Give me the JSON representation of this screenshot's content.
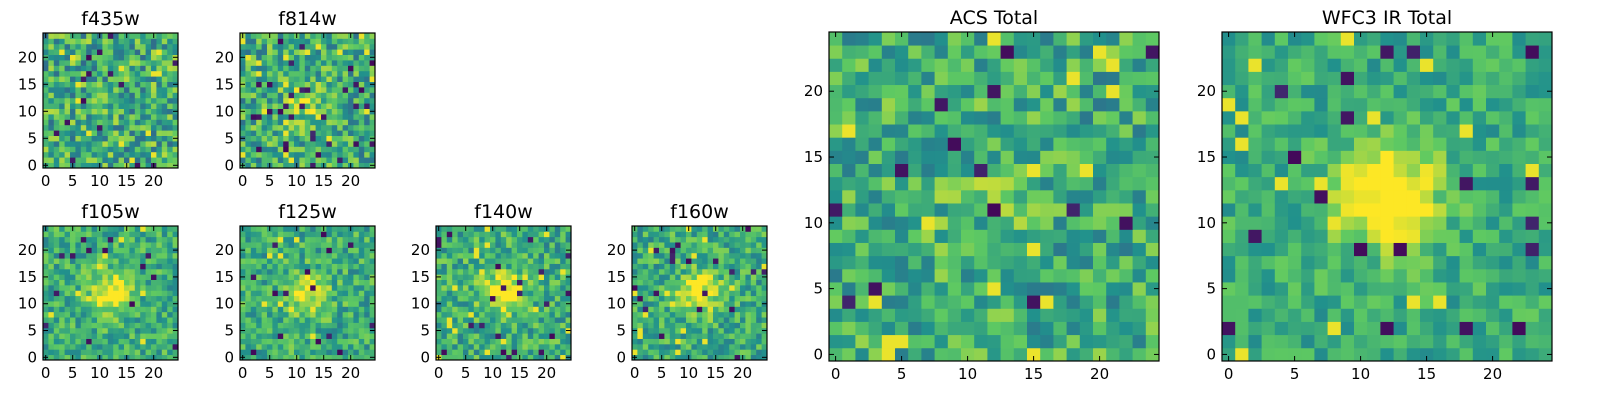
{
  "chart_data": [
    {
      "type": "heatmap",
      "title": "f435w",
      "size": 25,
      "seed": 435,
      "xticks": [
        0,
        5,
        10,
        15,
        20
      ],
      "yticks": [
        0,
        5,
        10,
        15,
        20
      ],
      "xlim": [
        0,
        24
      ],
      "ylim": [
        0,
        24
      ],
      "peak": 0.0,
      "noise": 0.55,
      "outlier_rate": 0.03,
      "colormap": [
        "#440154",
        "#3b528b",
        "#21918c",
        "#5ec962",
        "#fde725"
      ]
    },
    {
      "type": "heatmap",
      "title": "f814w",
      "size": 25,
      "seed": 814,
      "xticks": [
        0,
        5,
        10,
        15,
        20
      ],
      "yticks": [
        0,
        5,
        10,
        15,
        20
      ],
      "xlim": [
        0,
        24
      ],
      "ylim": [
        0,
        24
      ],
      "peak": 0.25,
      "noise": 0.5,
      "outlier_rate": 0.04,
      "colormap": [
        "#440154",
        "#3b528b",
        "#21918c",
        "#5ec962",
        "#fde725"
      ]
    },
    {
      "type": "heatmap",
      "title": "f105w",
      "size": 25,
      "seed": 105,
      "xticks": [
        0,
        5,
        10,
        15,
        20
      ],
      "yticks": [
        0,
        5,
        10,
        15,
        20
      ],
      "xlim": [
        0,
        24
      ],
      "ylim": [
        0,
        24
      ],
      "peak": 0.45,
      "noise": 0.38,
      "outlier_rate": 0.02,
      "colormap": [
        "#440154",
        "#3b528b",
        "#21918c",
        "#5ec962",
        "#fde725"
      ]
    },
    {
      "type": "heatmap",
      "title": "f125w",
      "size": 25,
      "seed": 125,
      "xticks": [
        0,
        5,
        10,
        15,
        20
      ],
      "yticks": [
        0,
        5,
        10,
        15,
        20
      ],
      "xlim": [
        0,
        24
      ],
      "ylim": [
        0,
        24
      ],
      "peak": 0.4,
      "noise": 0.4,
      "outlier_rate": 0.02,
      "colormap": [
        "#440154",
        "#3b528b",
        "#21918c",
        "#5ec962",
        "#fde725"
      ]
    },
    {
      "type": "heatmap",
      "title": "f140w",
      "size": 25,
      "seed": 140,
      "xticks": [
        0,
        5,
        10,
        15,
        20
      ],
      "yticks": [
        0,
        5,
        10,
        15,
        20
      ],
      "xlim": [
        0,
        24
      ],
      "ylim": [
        0,
        24
      ],
      "peak": 0.5,
      "noise": 0.42,
      "outlier_rate": 0.03,
      "colormap": [
        "#440154",
        "#3b528b",
        "#21918c",
        "#5ec962",
        "#fde725"
      ]
    },
    {
      "type": "heatmap",
      "title": "f160w",
      "size": 25,
      "seed": 160,
      "xticks": [
        0,
        5,
        10,
        15,
        20
      ],
      "yticks": [
        0,
        5,
        10,
        15,
        20
      ],
      "xlim": [
        0,
        24
      ],
      "ylim": [
        0,
        24
      ],
      "peak": 0.45,
      "noise": 0.4,
      "outlier_rate": 0.03,
      "colormap": [
        "#440154",
        "#3b528b",
        "#21918c",
        "#5ec962",
        "#fde725"
      ]
    },
    {
      "type": "heatmap",
      "title": "ACS Total",
      "size": 25,
      "seed": 999,
      "xticks": [
        0,
        5,
        10,
        15,
        20
      ],
      "yticks": [
        0,
        5,
        10,
        15,
        20
      ],
      "xlim": [
        0,
        24
      ],
      "ylim": [
        0,
        24
      ],
      "peak": 0.1,
      "noise": 0.45,
      "outlier_rate": 0.03,
      "colormap": [
        "#440154",
        "#3b528b",
        "#21918c",
        "#5ec962",
        "#fde725"
      ]
    },
    {
      "type": "heatmap",
      "title": "WFC3 IR Total",
      "size": 25,
      "seed": 333,
      "xticks": [
        0,
        5,
        10,
        15,
        20
      ],
      "yticks": [
        0,
        5,
        10,
        15,
        20
      ],
      "xlim": [
        0,
        24
      ],
      "ylim": [
        0,
        24
      ],
      "peak": 0.6,
      "noise": 0.3,
      "outlier_rate": 0.025,
      "colormap": [
        "#440154",
        "#3b528b",
        "#21918c",
        "#5ec962",
        "#fde725"
      ]
    }
  ]
}
